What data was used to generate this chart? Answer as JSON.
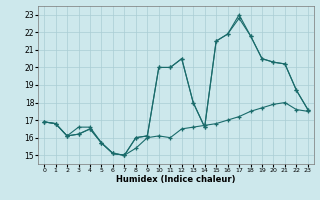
{
  "xlabel": "Humidex (Indice chaleur)",
  "bg_color": "#cde8ec",
  "grid_color": "#aacdd4",
  "line_color": "#1a6b6b",
  "xlim": [
    -0.5,
    23.5
  ],
  "ylim": [
    14.5,
    23.5
  ],
  "yticks": [
    15,
    16,
    17,
    18,
    19,
    20,
    21,
    22,
    23
  ],
  "xticks": [
    0,
    1,
    2,
    3,
    4,
    5,
    6,
    7,
    8,
    9,
    10,
    11,
    12,
    13,
    14,
    15,
    16,
    17,
    18,
    19,
    20,
    21,
    22,
    23
  ],
  "line1_x": [
    0,
    1,
    2,
    3,
    4,
    5,
    6,
    7,
    8,
    9,
    10,
    11,
    12,
    13,
    14,
    15,
    16,
    17,
    18,
    19,
    20,
    21,
    22,
    23
  ],
  "line1_y": [
    16.9,
    16.8,
    16.1,
    16.6,
    16.6,
    15.7,
    15.1,
    15.0,
    15.4,
    16.0,
    16.1,
    16.0,
    16.5,
    16.6,
    16.7,
    16.8,
    17.0,
    17.2,
    17.5,
    17.7,
    17.9,
    18.0,
    17.6,
    17.5
  ],
  "line2_x": [
    0,
    1,
    2,
    3,
    4,
    5,
    6,
    7,
    8,
    9,
    10,
    11,
    12,
    13,
    14,
    15,
    16,
    17,
    18,
    19,
    20,
    21,
    22,
    23
  ],
  "line2_y": [
    16.9,
    16.8,
    16.1,
    16.2,
    16.5,
    15.7,
    15.1,
    15.0,
    16.0,
    16.1,
    20.0,
    20.0,
    20.5,
    18.0,
    16.6,
    21.5,
    21.9,
    22.8,
    21.8,
    20.5,
    20.3,
    20.2,
    18.7,
    17.6
  ],
  "line3_x": [
    0,
    1,
    2,
    3,
    4,
    5,
    6,
    7,
    8,
    9,
    10,
    11,
    12,
    13,
    14,
    15,
    16,
    17,
    18,
    19,
    20,
    21,
    22,
    23
  ],
  "line3_y": [
    16.9,
    16.8,
    16.1,
    16.2,
    16.5,
    15.7,
    15.1,
    15.0,
    16.0,
    16.1,
    20.0,
    20.0,
    20.5,
    18.0,
    16.6,
    21.5,
    21.9,
    23.0,
    21.8,
    20.5,
    20.3,
    20.2,
    18.7,
    17.6
  ]
}
